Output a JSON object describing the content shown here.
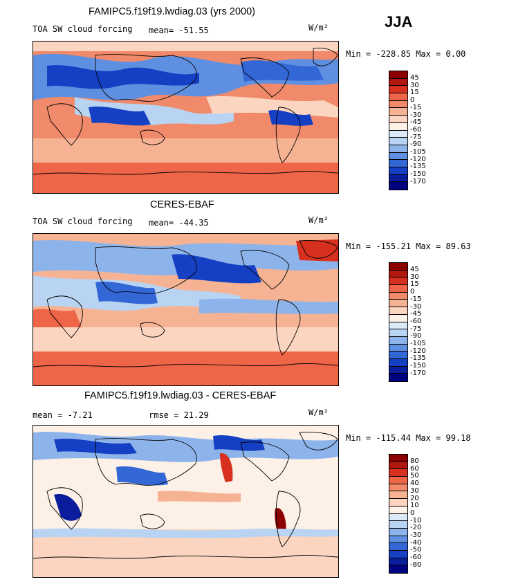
{
  "season": "JJA",
  "unit": "W/m²",
  "panels": [
    {
      "title": "FAMIPC5.f19f19.lwdiag.03 (yrs 2000)",
      "left_text": "TOA SW cloud forcing",
      "stat1": "mean= -51.55",
      "stat2": "",
      "minmax": "Min = -228.85  Max =   0.00",
      "levels": [
        "45",
        "30",
        "15",
        "0",
        "-15",
        "-30",
        "-45",
        "-60",
        "-75",
        "-90",
        "-105",
        "-120",
        "-135",
        "-150",
        "-170"
      ]
    },
    {
      "title": "CERES-EBAF",
      "left_text": "TOA SW cloud forcing",
      "stat1": "mean= -44.35",
      "stat2": "",
      "minmax": "Min = -155.21  Max =  89.63",
      "levels": [
        "45",
        "30",
        "15",
        "0",
        "-15",
        "-30",
        "-45",
        "-60",
        "-75",
        "-90",
        "-105",
        "-120",
        "-135",
        "-150",
        "-170"
      ]
    },
    {
      "title": "FAMIPC5.f19f19.lwdiag.03 - CERES-EBAF",
      "left_text": "mean =   -7.21",
      "stat1": "rmse =   21.29",
      "stat2": "",
      "minmax": "Min = -115.44  Max =  99.18",
      "levels": [
        "80",
        "60",
        "50",
        "40",
        "30",
        "20",
        "10",
        "0",
        "-10",
        "-20",
        "-30",
        "-40",
        "-50",
        "-60",
        "-80"
      ]
    }
  ],
  "colors": {
    "scale": [
      "#8b0000",
      "#b2180e",
      "#d7301f",
      "#ef6548",
      "#f08a6a",
      "#f6b394",
      "#fbd5c0",
      "#fdf0e6",
      "#dceaf8",
      "#b9d3f2",
      "#8db4ea",
      "#5f8fe0",
      "#3367d6",
      "#1540c4",
      "#0a1d9c",
      "#000080"
    ]
  }
}
